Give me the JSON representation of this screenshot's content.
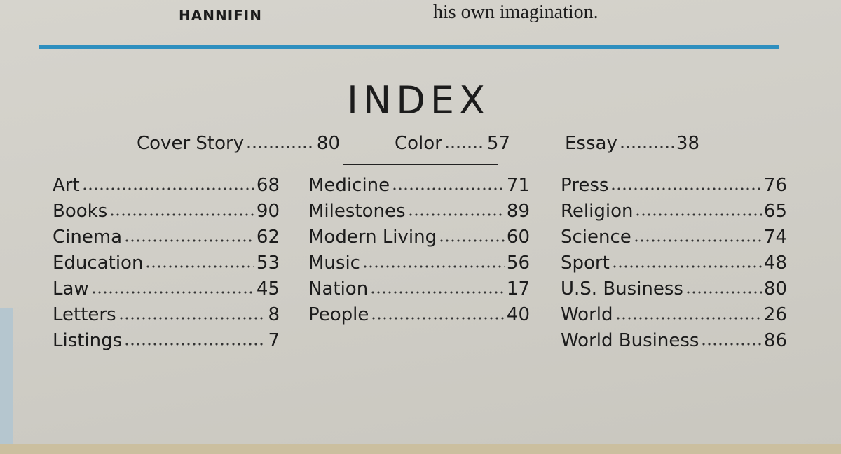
{
  "header": {
    "left": "HANNIFIN",
    "right": "his own imagination."
  },
  "index": {
    "title": "INDEX",
    "featured": [
      {
        "label": "Cover Story",
        "page": 80
      },
      {
        "label": "Color",
        "page": 57
      },
      {
        "label": "Essay",
        "page": 38
      }
    ],
    "columns": [
      [
        {
          "label": "Art",
          "page": 68
        },
        {
          "label": "Books",
          "page": 90
        },
        {
          "label": "Cinema",
          "page": 62
        },
        {
          "label": "Education",
          "page": 53
        },
        {
          "label": "Law",
          "page": 45
        },
        {
          "label": "Letters",
          "page": 8
        },
        {
          "label": "Listings",
          "page": 7
        }
      ],
      [
        {
          "label": "Medicine",
          "page": 71
        },
        {
          "label": "Milestones",
          "page": 89
        },
        {
          "label": "Modern Living",
          "page": 60
        },
        {
          "label": "Music",
          "page": 56
        },
        {
          "label": "Nation",
          "page": 17
        },
        {
          "label": "People",
          "page": 40
        }
      ],
      [
        {
          "label": "Press",
          "page": 76
        },
        {
          "label": "Religion",
          "page": 65
        },
        {
          "label": "Science",
          "page": 74
        },
        {
          "label": "Sport",
          "page": 48
        },
        {
          "label": "U.S. Business",
          "page": 80
        },
        {
          "label": "World",
          "page": 26
        },
        {
          "label": "World Business",
          "page": 86
        }
      ]
    ]
  }
}
